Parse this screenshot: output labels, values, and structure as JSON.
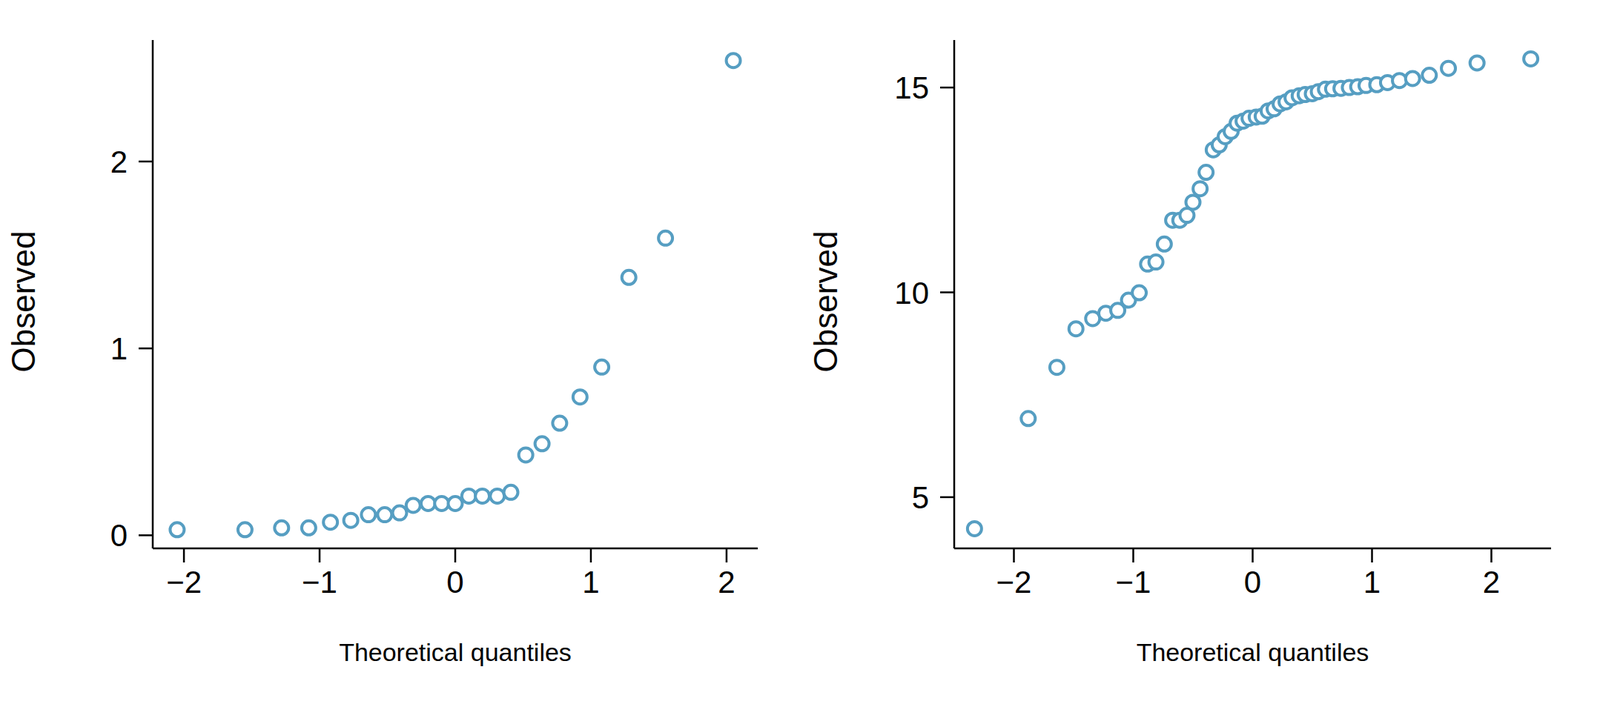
{
  "chart_data": [
    {
      "type": "scatter",
      "marker": "circle",
      "color": "#569ec2",
      "x_label": "Theoretical quantiles",
      "y_label": "Observed",
      "x": [
        -2.05,
        -1.55,
        -1.28,
        -1.08,
        -0.92,
        -0.77,
        -0.64,
        -0.52,
        -0.41,
        -0.31,
        -0.2,
        -0.1,
        0,
        0.1,
        0.2,
        0.31,
        0.41,
        0.52,
        0.64,
        0.77,
        0.92,
        1.08,
        1.28,
        1.55,
        2.05
      ],
      "values": [
        0.03,
        0.03,
        0.04,
        0.04,
        0.07,
        0.08,
        0.11,
        0.11,
        0.12,
        0.16,
        0.17,
        0.17,
        0.17,
        0.21,
        0.21,
        0.21,
        0.23,
        0.43,
        0.49,
        0.6,
        0.74,
        0.9,
        1.38,
        1.59,
        2.54
      ],
      "xlim": [
        -2.23,
        2.23
      ],
      "ylim": [
        -0.07,
        2.65
      ],
      "xticks": [
        -2,
        -1,
        0,
        1,
        2
      ],
      "yticks": [
        0,
        1,
        2
      ]
    },
    {
      "type": "scatter",
      "marker": "circle",
      "color": "#569ec2",
      "x_label": "Theoretical quantiles",
      "y_label": "Observed",
      "x": [
        -2.33,
        -1.88,
        -1.64,
        -1.48,
        -1.34,
        -1.23,
        -1.13,
        -1.04,
        -0.95,
        -0.88,
        -0.81,
        -0.74,
        -0.67,
        -0.61,
        -0.55,
        -0.5,
        -0.44,
        -0.39,
        -0.33,
        -0.28,
        -0.23,
        -0.18,
        -0.13,
        -0.08,
        -0.03,
        0.03,
        0.08,
        0.13,
        0.18,
        0.23,
        0.28,
        0.33,
        0.39,
        0.44,
        0.5,
        0.55,
        0.61,
        0.67,
        0.74,
        0.81,
        0.88,
        0.95,
        1.04,
        1.13,
        1.23,
        1.34,
        1.48,
        1.64,
        1.88,
        2.33
      ],
      "values": [
        4.23,
        6.92,
        8.17,
        9.11,
        9.36,
        9.49,
        9.56,
        9.81,
        9.99,
        10.69,
        10.74,
        11.18,
        11.76,
        11.76,
        11.88,
        12.2,
        12.53,
        12.93,
        13.48,
        13.6,
        13.8,
        13.93,
        14.13,
        14.18,
        14.25,
        14.28,
        14.3,
        14.43,
        14.48,
        14.6,
        14.65,
        14.75,
        14.8,
        14.83,
        14.85,
        14.9,
        14.96,
        14.97,
        14.98,
        15.0,
        15.02,
        15.05,
        15.07,
        15.12,
        15.17,
        15.22,
        15.3,
        15.47,
        15.6,
        15.7
      ],
      "xlim": [
        -2.5,
        2.5
      ],
      "ylim": [
        3.75,
        16.16
      ],
      "xticks": [
        -2,
        -1,
        0,
        1,
        2
      ],
      "yticks": [
        5,
        10,
        15
      ]
    }
  ]
}
